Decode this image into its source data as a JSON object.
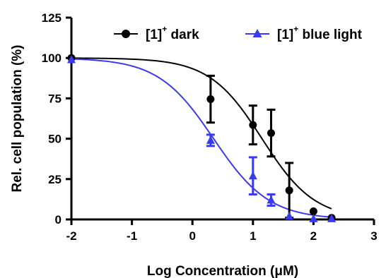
{
  "chart_data": {
    "type": "scatter",
    "title": "",
    "xlabel": "Log Concentration (μM)",
    "ylabel": "Rel. cell population (%)",
    "xlim": [
      -2,
      3
    ],
    "ylim": [
      0,
      125
    ],
    "xticks": [
      -2,
      -1,
      0,
      1,
      2,
      3
    ],
    "yticks": [
      0,
      25,
      50,
      75,
      100,
      125
    ],
    "xtick_labels": [
      "-2",
      "-1",
      "0",
      "1",
      "2",
      "3"
    ],
    "ytick_labels": [
      "0",
      "25",
      "50",
      "75",
      "100",
      "125"
    ],
    "grid": false,
    "legend_position": "top",
    "series": [
      {
        "name": "[1]+ dark",
        "label_main": "[1]",
        "label_sup": "+",
        "label_rest": " dark",
        "color": "#000000",
        "marker": "circle",
        "points": [
          {
            "x": -2.0,
            "y": 100,
            "err": 0
          },
          {
            "x": 0.3,
            "y": 74.5,
            "err": 14.5
          },
          {
            "x": 1.0,
            "y": 58.5,
            "err": 12
          },
          {
            "x": 1.3,
            "y": 53.5,
            "err": 14.5
          },
          {
            "x": 1.6,
            "y": 18,
            "err": 17
          },
          {
            "x": 2.0,
            "y": 5,
            "err": 0
          },
          {
            "x": 2.3,
            "y": 1,
            "err": 0
          }
        ],
        "fit": {
          "top": 100,
          "bottom": 0,
          "logIC50": 1.15,
          "hill": -1.0,
          "x_start": -2.0,
          "x_end": 2.3
        }
      },
      {
        "name": "[1]+ blue light",
        "label_main": "[1]",
        "label_sup": "+",
        "label_rest": " blue light",
        "color": "#3a3af0",
        "marker": "triangle",
        "points": [
          {
            "x": -2.0,
            "y": 99,
            "err": 0
          },
          {
            "x": 0.3,
            "y": 49,
            "err": 3.5
          },
          {
            "x": 1.0,
            "y": 27,
            "err": 11.5
          },
          {
            "x": 1.3,
            "y": 12,
            "err": 3.5
          },
          {
            "x": 1.6,
            "y": 2,
            "err": 0
          },
          {
            "x": 2.0,
            "y": 0.5,
            "err": 0
          },
          {
            "x": 2.3,
            "y": 0.5,
            "err": 0
          }
        ],
        "fit": {
          "top": 100,
          "bottom": 0,
          "logIC50": 0.35,
          "hill": -0.95,
          "x_start": -2.0,
          "x_end": 2.3
        }
      }
    ]
  }
}
